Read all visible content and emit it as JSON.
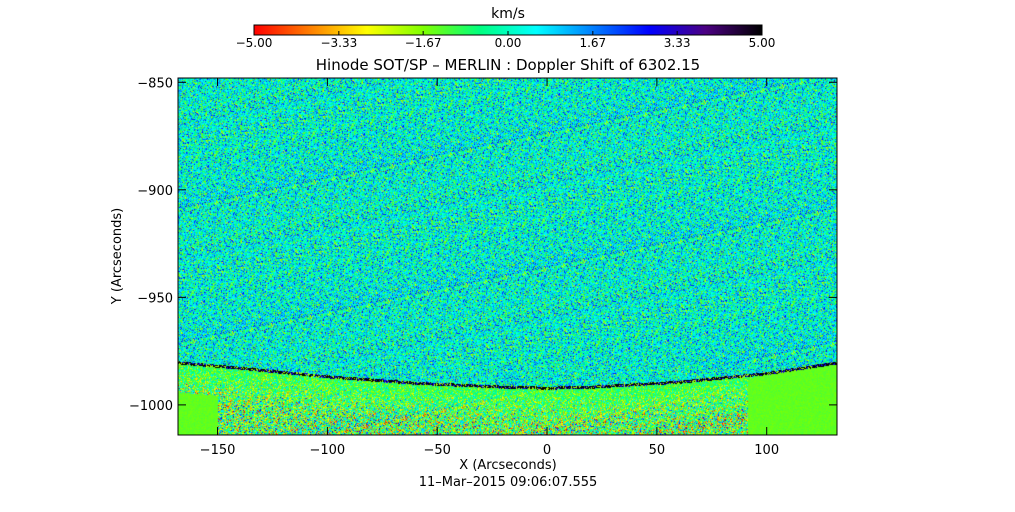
{
  "chart_data": {
    "type": "heatmap",
    "title": "Hinode SOT/SP – MERLIN : Doppler Shift of 6302.15",
    "xlabel": "X (Arcseconds)",
    "ylabel": "Y (Arcseconds)",
    "footer": "11–Mar–2015 09:06:07.555",
    "xlim": [
      -168,
      132
    ],
    "ylim": [
      -1014,
      -848
    ],
    "x_ticks": [
      -150,
      -100,
      -50,
      0,
      50,
      100
    ],
    "x_tick_labels": [
      "−150",
      "−100",
      "−50",
      "0",
      "50",
      "100"
    ],
    "y_ticks": [
      -850,
      -900,
      -950,
      -1000
    ],
    "y_tick_labels": [
      "−850",
      "−900",
      "−950",
      "−1000"
    ],
    "colorbar": {
      "label": "km/s",
      "min": -5.0,
      "max": 5.0,
      "ticks": [
        -5.0,
        -3.33,
        -1.67,
        0.0,
        1.67,
        3.33,
        5.0
      ],
      "tick_labels": [
        "−5.00",
        "−3.33",
        "−1.67",
        "0.00",
        "1.67",
        "3.33",
        "5.00"
      ],
      "colors": [
        "#ff0000",
        "#ff7f00",
        "#ffff00",
        "#7fff00",
        "#00ff7f",
        "#00ffff",
        "#007fff",
        "#0000ff",
        "#4b0082",
        "#000000"
      ]
    },
    "limb": {
      "description_values": "solar limb arc in data units",
      "x": [
        -168,
        -140,
        -100,
        -60,
        -20,
        0,
        20,
        60,
        100,
        132
      ],
      "y": [
        -980,
        -982.5,
        -986.5,
        -989.5,
        -991.3,
        -991.8,
        -991.3,
        -989,
        -985,
        -980
      ]
    },
    "field_mean_kms": 0.3,
    "field_spread_kms": 1.2
  }
}
